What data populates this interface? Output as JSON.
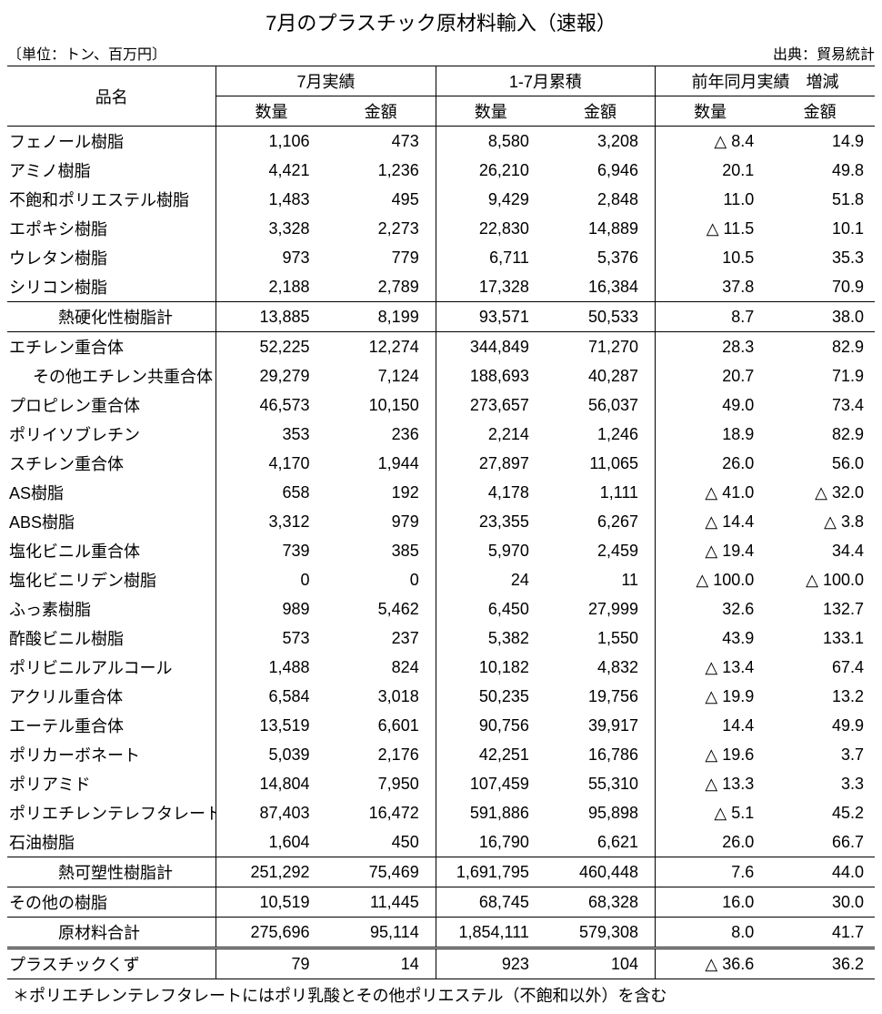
{
  "title": "7月のプラスチック原材料輸入（速報）",
  "unit_label": "〔単位：トン、百万円〕",
  "source_label": "出典：貿易統計",
  "header": {
    "item": "品名",
    "group_july": "7月実績",
    "group_cum": "1-7月累積",
    "group_yoy": "前年同月実績　増減",
    "qty": "数量",
    "amt": "金額"
  },
  "rows": [
    {
      "name": "フェノール樹脂",
      "indent": 0,
      "q_jul": "1,106",
      "a_jul": "473",
      "q_cum": "8,580",
      "a_cum": "3,208",
      "d_qty": "-8.4",
      "d_amt": "14.9"
    },
    {
      "name": "アミノ樹脂",
      "indent": 0,
      "q_jul": "4,421",
      "a_jul": "1,236",
      "q_cum": "26,210",
      "a_cum": "6,946",
      "d_qty": "20.1",
      "d_amt": "49.8"
    },
    {
      "name": "不飽和ポリエステル樹脂",
      "indent": 0,
      "q_jul": "1,483",
      "a_jul": "495",
      "q_cum": "9,429",
      "a_cum": "2,848",
      "d_qty": "11.0",
      "d_amt": "51.8"
    },
    {
      "name": "エポキシ樹脂",
      "indent": 0,
      "q_jul": "3,328",
      "a_jul": "2,273",
      "q_cum": "22,830",
      "a_cum": "14,889",
      "d_qty": "-11.5",
      "d_amt": "10.1"
    },
    {
      "name": "ウレタン樹脂",
      "indent": 0,
      "q_jul": "973",
      "a_jul": "779",
      "q_cum": "6,711",
      "a_cum": "5,376",
      "d_qty": "10.5",
      "d_amt": "35.3"
    },
    {
      "name": "シリコン樹脂",
      "indent": 0,
      "q_jul": "2,188",
      "a_jul": "2,789",
      "q_cum": "17,328",
      "a_cum": "16,384",
      "d_qty": "37.8",
      "d_amt": "70.9"
    },
    {
      "name": "熱硬化性樹脂計",
      "indent": 2,
      "sep": "top",
      "q_jul": "13,885",
      "a_jul": "8,199",
      "q_cum": "93,571",
      "a_cum": "50,533",
      "d_qty": "8.7",
      "d_amt": "38.0"
    },
    {
      "name": "エチレン重合体",
      "indent": 0,
      "sep": "top",
      "q_jul": "52,225",
      "a_jul": "12,274",
      "q_cum": "344,849",
      "a_cum": "71,270",
      "d_qty": "28.3",
      "d_amt": "82.9"
    },
    {
      "name": "その他エチレン共重合体",
      "indent": 1,
      "q_jul": "29,279",
      "a_jul": "7,124",
      "q_cum": "188,693",
      "a_cum": "40,287",
      "d_qty": "20.7",
      "d_amt": "71.9"
    },
    {
      "name": "プロピレン重合体",
      "indent": 0,
      "q_jul": "46,573",
      "a_jul": "10,150",
      "q_cum": "273,657",
      "a_cum": "56,037",
      "d_qty": "49.0",
      "d_amt": "73.4"
    },
    {
      "name": "ポリイソブレチン",
      "indent": 0,
      "q_jul": "353",
      "a_jul": "236",
      "q_cum": "2,214",
      "a_cum": "1,246",
      "d_qty": "18.9",
      "d_amt": "82.9"
    },
    {
      "name": "スチレン重合体",
      "indent": 0,
      "q_jul": "4,170",
      "a_jul": "1,944",
      "q_cum": "27,897",
      "a_cum": "11,065",
      "d_qty": "26.0",
      "d_amt": "56.0"
    },
    {
      "name": "AS樹脂",
      "indent": 0,
      "q_jul": "658",
      "a_jul": "192",
      "q_cum": "4,178",
      "a_cum": "1,111",
      "d_qty": "-41.0",
      "d_amt": "-32.0"
    },
    {
      "name": "ABS樹脂",
      "indent": 0,
      "q_jul": "3,312",
      "a_jul": "979",
      "q_cum": "23,355",
      "a_cum": "6,267",
      "d_qty": "-14.4",
      "d_amt": "-3.8"
    },
    {
      "name": "塩化ビニル重合体",
      "indent": 0,
      "q_jul": "739",
      "a_jul": "385",
      "q_cum": "5,970",
      "a_cum": "2,459",
      "d_qty": "-19.4",
      "d_amt": "34.4"
    },
    {
      "name": "塩化ビニリデン樹脂",
      "indent": 0,
      "q_jul": "0",
      "a_jul": "0",
      "q_cum": "24",
      "a_cum": "11",
      "d_qty": "-100.0",
      "d_amt": "-100.0"
    },
    {
      "name": "ふっ素樹脂",
      "indent": 0,
      "q_jul": "989",
      "a_jul": "5,462",
      "q_cum": "6,450",
      "a_cum": "27,999",
      "d_qty": "32.6",
      "d_amt": "132.7"
    },
    {
      "name": "酢酸ビニル樹脂",
      "indent": 0,
      "q_jul": "573",
      "a_jul": "237",
      "q_cum": "5,382",
      "a_cum": "1,550",
      "d_qty": "43.9",
      "d_amt": "133.1"
    },
    {
      "name": "ポリビニルアルコール",
      "indent": 0,
      "q_jul": "1,488",
      "a_jul": "824",
      "q_cum": "10,182",
      "a_cum": "4,832",
      "d_qty": "-13.4",
      "d_amt": "67.4"
    },
    {
      "name": "アクリル重合体",
      "indent": 0,
      "q_jul": "6,584",
      "a_jul": "3,018",
      "q_cum": "50,235",
      "a_cum": "19,756",
      "d_qty": "-19.9",
      "d_amt": "13.2"
    },
    {
      "name": "エーテル重合体",
      "indent": 0,
      "q_jul": "13,519",
      "a_jul": "6,601",
      "q_cum": "90,756",
      "a_cum": "39,917",
      "d_qty": "14.4",
      "d_amt": "49.9"
    },
    {
      "name": "ポリカーボネート",
      "indent": 0,
      "q_jul": "5,039",
      "a_jul": "2,176",
      "q_cum": "42,251",
      "a_cum": "16,786",
      "d_qty": "-19.6",
      "d_amt": "3.7"
    },
    {
      "name": "ポリアミド",
      "indent": 0,
      "q_jul": "14,804",
      "a_jul": "7,950",
      "q_cum": "107,459",
      "a_cum": "55,310",
      "d_qty": "-13.3",
      "d_amt": "3.3"
    },
    {
      "name": "ポリエチレンテレフタレート",
      "indent": 0,
      "q_jul": "87,403",
      "a_jul": "16,472",
      "q_cum": "591,886",
      "a_cum": "95,898",
      "d_qty": "-5.1",
      "d_amt": "45.2"
    },
    {
      "name": "石油樹脂",
      "indent": 0,
      "q_jul": "1,604",
      "a_jul": "450",
      "q_cum": "16,790",
      "a_cum": "6,621",
      "d_qty": "26.0",
      "d_amt": "66.7"
    },
    {
      "name": "熱可塑性樹脂計",
      "indent": 2,
      "sep": "top",
      "q_jul": "251,292",
      "a_jul": "75,469",
      "q_cum": "1,691,795",
      "a_cum": "460,448",
      "d_qty": "7.6",
      "d_amt": "44.0"
    },
    {
      "name": "その他の樹脂",
      "indent": 0,
      "sep": "top",
      "q_jul": "10,519",
      "a_jul": "11,445",
      "q_cum": "68,745",
      "a_cum": "68,328",
      "d_qty": "16.0",
      "d_amt": "30.0"
    },
    {
      "name": "原材料合計",
      "indent": 2,
      "sep": "top",
      "dbl": true,
      "q_jul": "275,696",
      "a_jul": "95,114",
      "q_cum": "1,854,111",
      "a_cum": "579,308",
      "d_qty": "8.0",
      "d_amt": "41.7"
    },
    {
      "name": "プラスチックくず",
      "indent": 0,
      "sep": "bot",
      "q_jul": "79",
      "a_jul": "14",
      "q_cum": "923",
      "a_cum": "104",
      "d_qty": "-36.6",
      "d_amt": "36.2"
    }
  ],
  "footnote": "＊ポリエチレンテレフタレートにはポリ乳酸とその他ポリエステル（不飽和以外）を含む",
  "style": {
    "font_size_body": 18,
    "font_size_title": 22,
    "color_text": "#000000",
    "color_bg": "#ffffff",
    "neg_marker": "△"
  }
}
